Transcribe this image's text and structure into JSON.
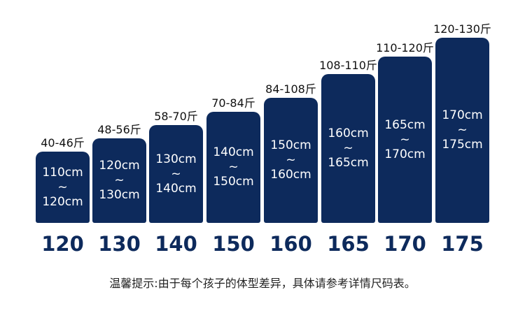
{
  "separator": "~",
  "items": [
    {
      "weight": "40-46斤",
      "height": [
        "110cm",
        "120cm"
      ],
      "size": "120"
    },
    {
      "weight": "48-56斤",
      "height": [
        "120cm",
        "130cm"
      ],
      "size": "130"
    },
    {
      "weight": "58-70斤",
      "height": [
        "130cm",
        "140cm"
      ],
      "size": "140"
    },
    {
      "weight": "70-84斤",
      "height": [
        "140cm",
        "150cm"
      ],
      "size": "150"
    },
    {
      "weight": "84-108斤",
      "height": [
        "150cm",
        "160cm"
      ],
      "size": "160"
    },
    {
      "weight": "108-110斤",
      "height": [
        "160cm",
        "165cm"
      ],
      "size": "165"
    },
    {
      "weight": "110-120斤",
      "height": [
        "165cm",
        "170cm"
      ],
      "size": "170"
    },
    {
      "weight": "120-130斤",
      "height": [
        "170cm",
        "175cm"
      ],
      "size": "175"
    }
  ],
  "note": "温馨提示:由于每个孩子的体型差异，具体请参考详情尺码表。"
}
